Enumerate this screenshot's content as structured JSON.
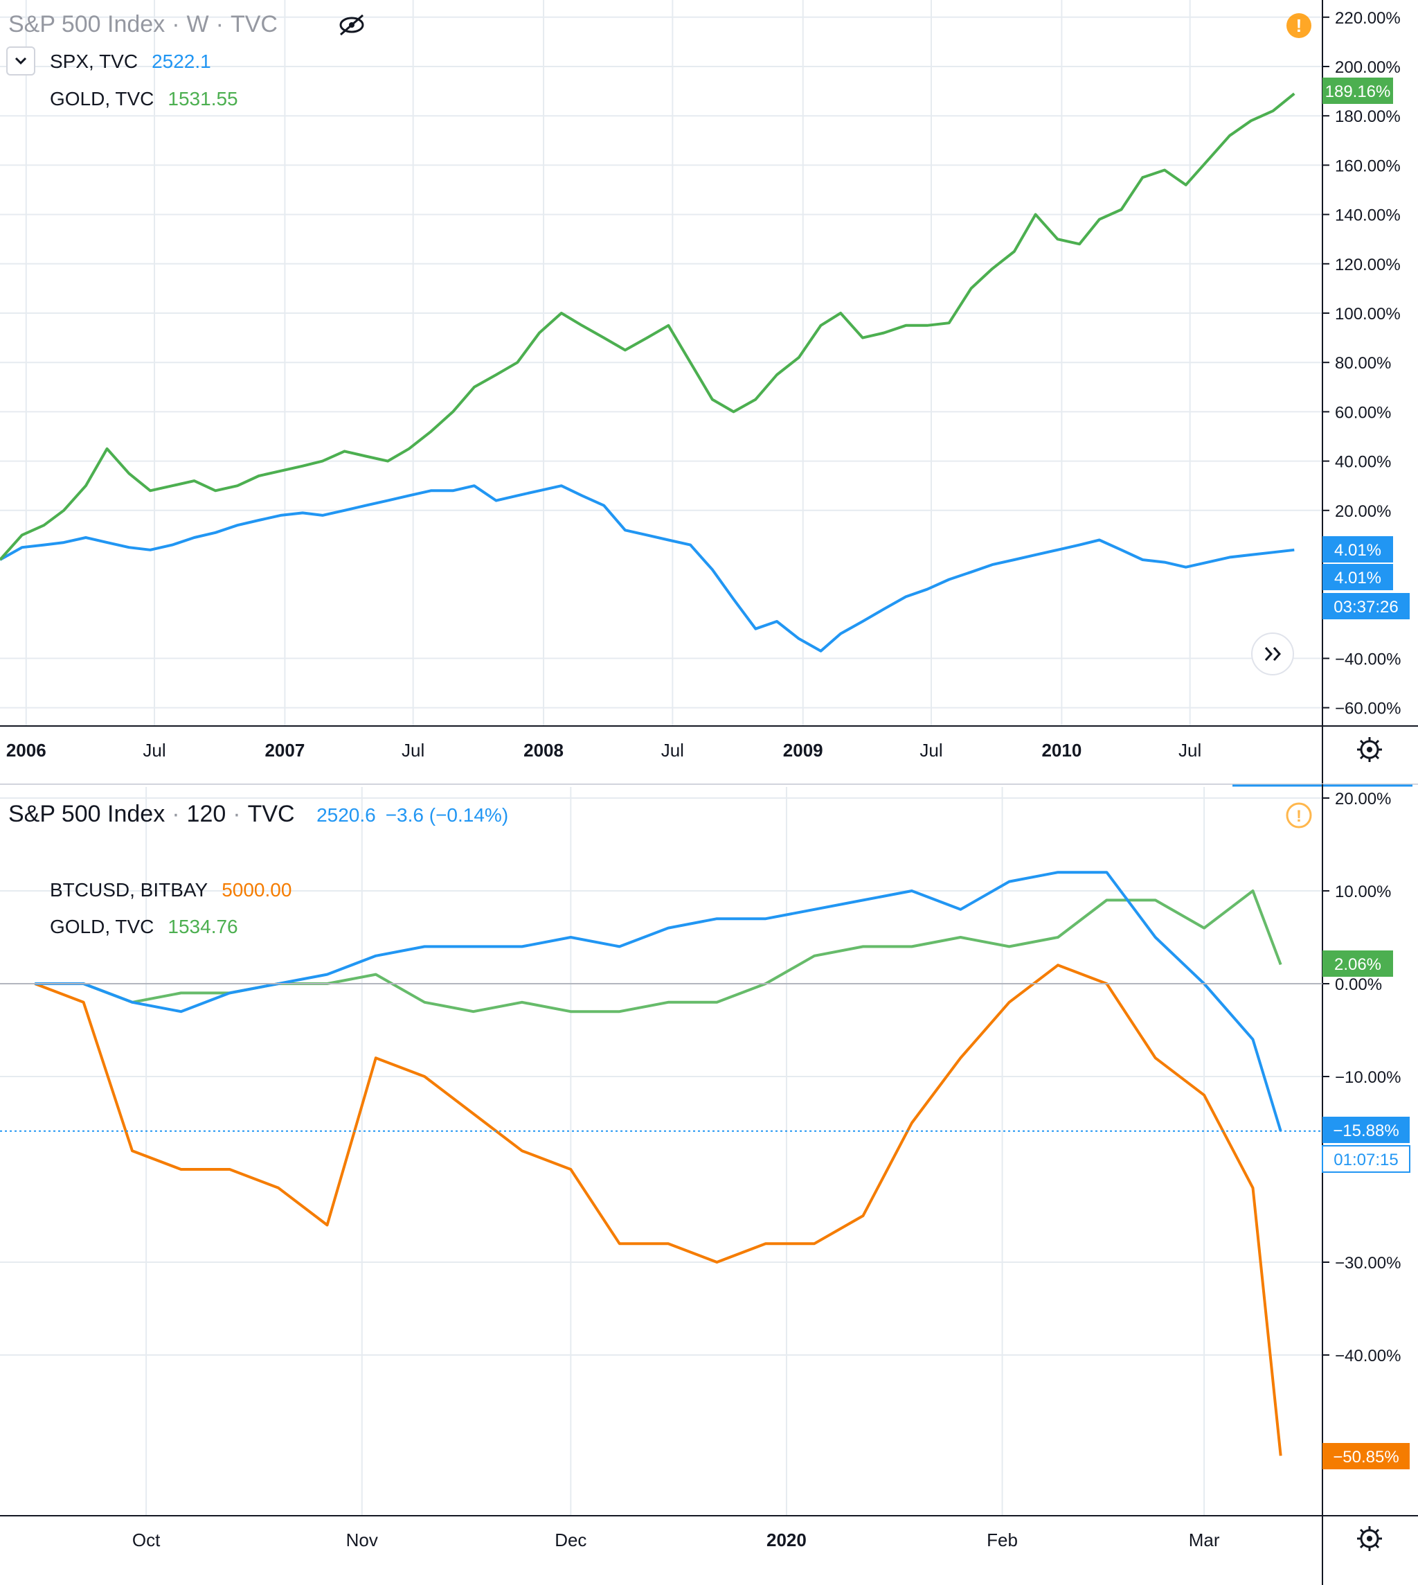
{
  "colors": {
    "spx": "#2196f3",
    "gold": "#4caf50",
    "gold_light": "#66bb6a",
    "btc": "#f57c00",
    "grid": "#e6ebf0",
    "axis": "#131722",
    "text": "#131722",
    "faded_text": "#9598a1",
    "alert": "#ff9800"
  },
  "top_chart": {
    "header": {
      "title": "S&P 500 Index",
      "interval": "W",
      "source": "TVC"
    },
    "legend": [
      {
        "name": "SPX, TVC",
        "value": "2522.1",
        "color_key": "spx"
      },
      {
        "name": "GOLD, TVC",
        "value": "1531.55",
        "color_key": "gold"
      }
    ],
    "badges": [
      {
        "text": "189.16%",
        "color_key": "gold"
      },
      {
        "text": "4.01%",
        "color_key": "spx"
      },
      {
        "text": "4.01%",
        "color_key": "spx"
      },
      {
        "text": "03:37:26",
        "color_key": "spx"
      }
    ],
    "icons": [
      "hide-icon",
      "collapse-chevron-icon",
      "alert-icon",
      "scroll-forward-icon",
      "settings-gear-icon"
    ]
  },
  "bottom_chart": {
    "header": {
      "title": "S&P 500 Index",
      "interval": "120",
      "source": "TVC",
      "value": "2520.6",
      "change": "−3.6 (−0.14%)"
    },
    "legend": [
      {
        "name": "BTCUSD, BITBAY",
        "value": "5000.00",
        "color_key": "btc"
      },
      {
        "name": "GOLD, TVC",
        "value": "1534.76",
        "color_key": "gold"
      }
    ],
    "badges": [
      {
        "text": "2.06%",
        "color_key": "gold"
      },
      {
        "text": "−15.88%",
        "color_key": "spx"
      },
      {
        "text": "01:07:15",
        "color_key": "spx"
      },
      {
        "text": "−50.85%",
        "color_key": "btc"
      }
    ],
    "icons": [
      "alert-icon",
      "settings-gear-icon"
    ]
  },
  "chart_data": [
    {
      "type": "line",
      "title": "S&P 500 Index · W · TVC",
      "x_tick_labels": [
        "2006",
        "Jul",
        "2007",
        "Jul",
        "2008",
        "Jul",
        "2009",
        "Jul",
        "2010",
        "Jul"
      ],
      "y_tick_labels": [
        "220.00%",
        "200.00%",
        "180.00%",
        "160.00%",
        "140.00%",
        "120.00%",
        "100.00%",
        "80.00%",
        "60.00%",
        "40.00%",
        "20.00%",
        "−40.00%",
        "−60.00%"
      ],
      "ylim": [
        -65,
        225
      ],
      "x": [
        "2005-12",
        "2006-01",
        "2006-02",
        "2006-03",
        "2006-04",
        "2006-05",
        "2006-06",
        "2006-07",
        "2006-08",
        "2006-09",
        "2006-10",
        "2006-11",
        "2006-12",
        "2007-01",
        "2007-02",
        "2007-03",
        "2007-04",
        "2007-05",
        "2007-06",
        "2007-07",
        "2007-08",
        "2007-09",
        "2007-10",
        "2007-11",
        "2007-12",
        "2008-01",
        "2008-02",
        "2008-03",
        "2008-04",
        "2008-05",
        "2008-06",
        "2008-07",
        "2008-08",
        "2008-09",
        "2008-10",
        "2008-11",
        "2008-12",
        "2009-01",
        "2009-02",
        "2009-03",
        "2009-04",
        "2009-05",
        "2009-06",
        "2009-07",
        "2009-08",
        "2009-09",
        "2009-10",
        "2009-11",
        "2009-12",
        "2010-01",
        "2010-02",
        "2010-03",
        "2010-04",
        "2010-05",
        "2010-06",
        "2010-07",
        "2010-08",
        "2010-09",
        "2010-10",
        "2010-11",
        "2010-12"
      ],
      "series": [
        {
          "name": "SPX, TVC",
          "color_key": "spx",
          "values": [
            0,
            5,
            6,
            7,
            9,
            7,
            5,
            4,
            6,
            9,
            11,
            14,
            16,
            18,
            19,
            18,
            20,
            22,
            24,
            26,
            28,
            28,
            30,
            24,
            26,
            28,
            30,
            26,
            22,
            12,
            10,
            8,
            6,
            -4,
            -16,
            -28,
            -25,
            -32,
            -37,
            -30,
            -25,
            -20,
            -15,
            -12,
            -8,
            -5,
            -2,
            0,
            2,
            4,
            6,
            8,
            4,
            0,
            -1,
            -3,
            -1,
            1,
            2,
            3,
            4
          ]
        },
        {
          "name": "GOLD, TVC",
          "color_key": "gold",
          "values": [
            0,
            10,
            14,
            20,
            30,
            45,
            35,
            28,
            30,
            32,
            28,
            30,
            34,
            36,
            38,
            40,
            44,
            42,
            40,
            45,
            52,
            60,
            70,
            75,
            80,
            92,
            100,
            95,
            90,
            85,
            90,
            95,
            80,
            65,
            60,
            65,
            75,
            82,
            95,
            100,
            90,
            92,
            95,
            95,
            96,
            110,
            118,
            125,
            140,
            130,
            128,
            138,
            142,
            155,
            158,
            152,
            162,
            172,
            178,
            182,
            189
          ]
        }
      ]
    },
    {
      "type": "line",
      "title": "S&P 500 Index · 120 · TVC",
      "x_tick_labels": [
        "Oct",
        "Nov",
        "Dec",
        "2020",
        "Feb",
        "Mar"
      ],
      "y_tick_labels": [
        "20.00%",
        "10.00%",
        "0.00%",
        "−10.00%",
        "−30.00%",
        "−40.00%"
      ],
      "ylim": [
        -58,
        21
      ],
      "x": [
        "2019-09-15",
        "2019-09-22",
        "2019-09-29",
        "2019-10-06",
        "2019-10-13",
        "2019-10-20",
        "2019-10-27",
        "2019-11-03",
        "2019-11-10",
        "2019-11-17",
        "2019-11-24",
        "2019-12-01",
        "2019-12-08",
        "2019-12-15",
        "2019-12-22",
        "2019-12-29",
        "2020-01-05",
        "2020-01-12",
        "2020-01-19",
        "2020-01-26",
        "2020-02-02",
        "2020-02-09",
        "2020-02-16",
        "2020-02-23",
        "2020-03-01",
        "2020-03-08",
        "2020-03-12"
      ],
      "series": [
        {
          "name": "S&P 500 Index",
          "color_key": "spx",
          "values": [
            0,
            0,
            -2,
            -3,
            -1,
            0,
            1,
            3,
            4,
            4,
            4,
            5,
            4,
            6,
            7,
            7,
            8,
            9,
            10,
            8,
            11,
            12,
            12,
            5,
            0,
            -6,
            -15.88
          ]
        },
        {
          "name": "GOLD, TVC",
          "color_key": "gold",
          "values": [
            0,
            0,
            -2,
            -1,
            -1,
            0,
            0,
            1,
            -2,
            -3,
            -2,
            -3,
            -3,
            -2,
            -2,
            0,
            3,
            4,
            4,
            5,
            4,
            5,
            9,
            9,
            6,
            10,
            2.06
          ]
        },
        {
          "name": "BTCUSD, BITBAY",
          "color_key": "btc",
          "values": [
            0,
            -2,
            -18,
            -20,
            -20,
            -22,
            -26,
            -8,
            -10,
            -14,
            -18,
            -20,
            -28,
            -28,
            -30,
            -28,
            -28,
            -25,
            -15,
            -8,
            -2,
            2,
            0,
            -8,
            -12,
            -22,
            -50.85
          ]
        }
      ]
    }
  ]
}
